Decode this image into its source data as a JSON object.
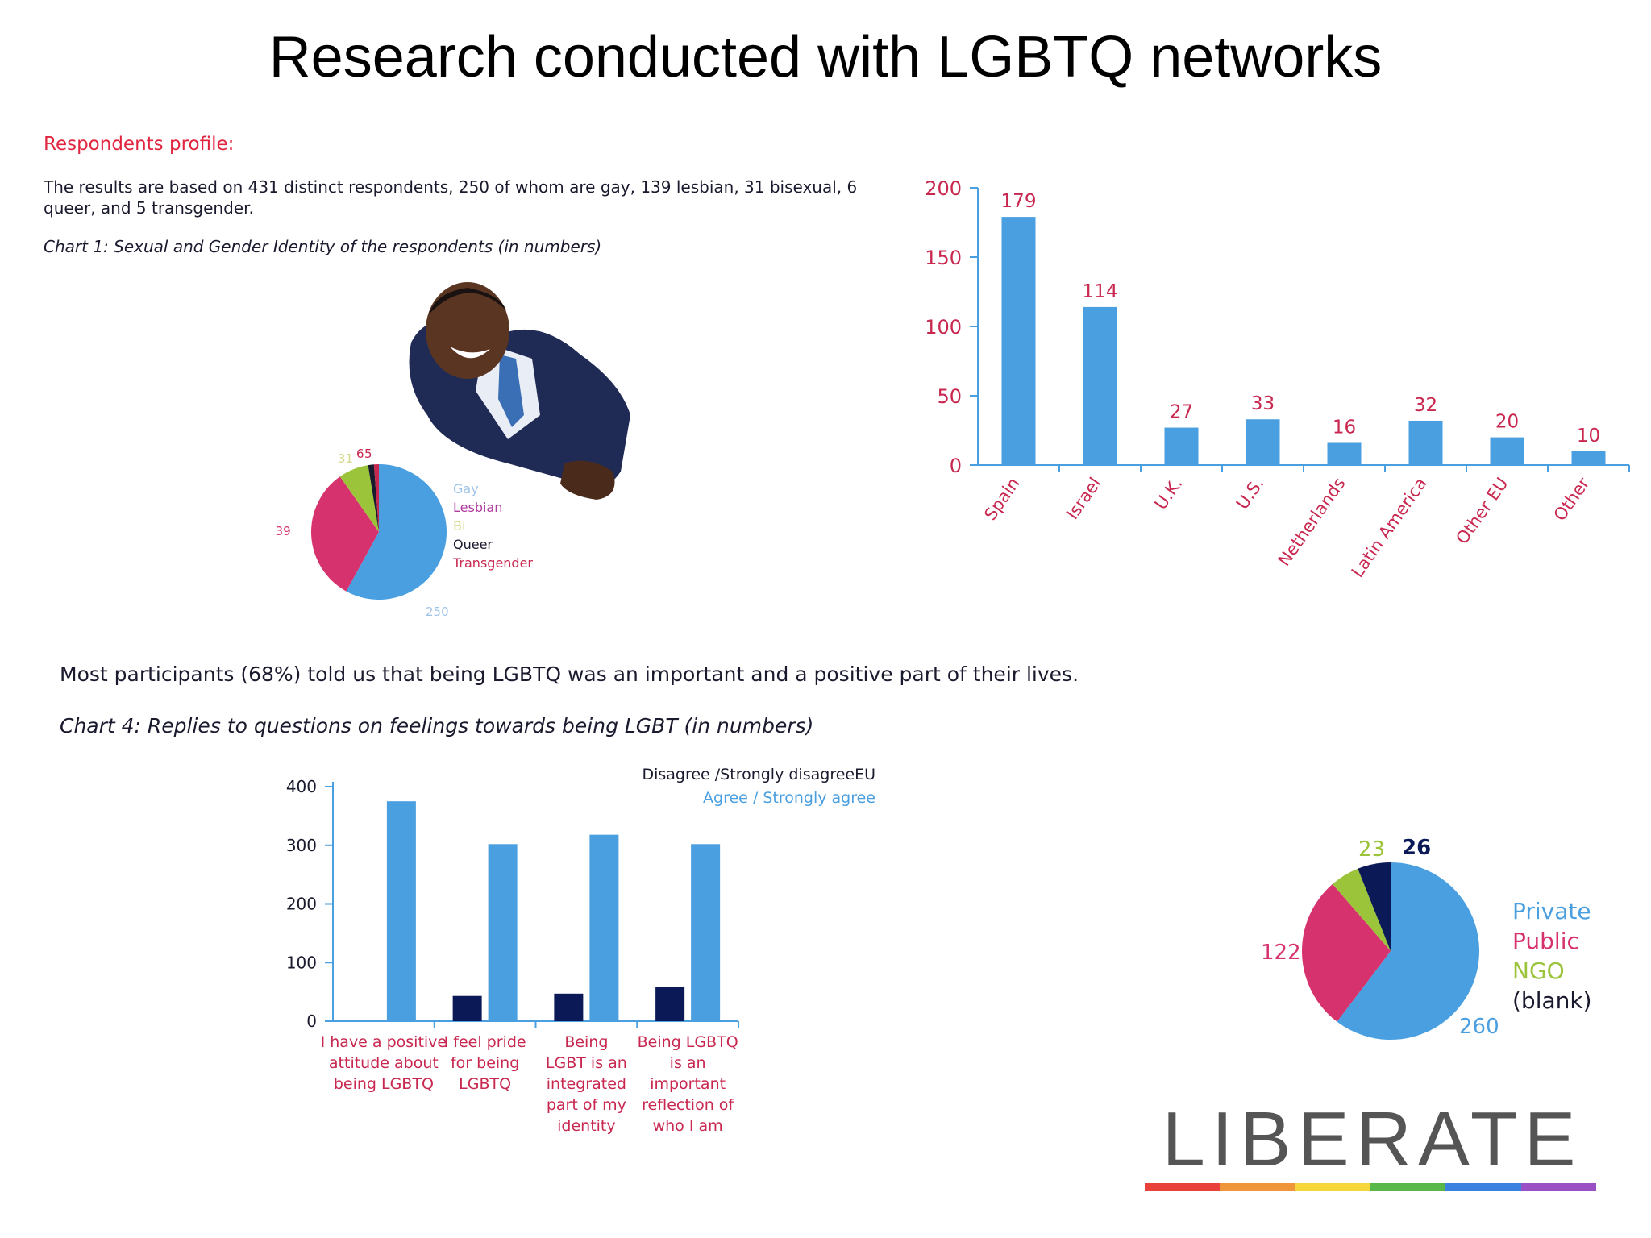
{
  "title": "Research conducted with LGBTQ networks",
  "profile": {
    "heading": "Respondents profile:",
    "text": "The results are based on 431 distinct respondents, 250 of whom are gay, 139 lesbian, 31 bisexual, 6 queer, and 5 transgender.",
    "chart_caption": "Chart 1: Sexual and Gender Identity of the respondents (in numbers)"
  },
  "participants_text": "Most participants (68%) told us that being LGBTQ was an important and a positive part of their lives.",
  "chart4_caption": "Chart 4: Replies to questions on feelings towards being LGBT (in numbers)",
  "colors": {
    "blue": "#4a9fe0",
    "pink": "#d6326e",
    "green": "#9cc43b",
    "navy": "#0b1a57",
    "label_red": "#c8274f",
    "axis_blue": "#4a9fe0"
  },
  "chart_data": [
    {
      "id": "identity-pie",
      "type": "pie",
      "slices": [
        {
          "name": "Gay",
          "value": 250,
          "label": "250",
          "color": "#4a9fe0"
        },
        {
          "name": "Lesbian",
          "value": 139,
          "label": "139",
          "color": "#d6326e"
        },
        {
          "name": "Bi",
          "value": 31,
          "label": "31",
          "color": "#9cc43b"
        },
        {
          "name": "Queer",
          "value": 6,
          "label": "6",
          "color": "#1a1a2e"
        },
        {
          "name": "Transgender",
          "value": 5,
          "label": "5",
          "color": "#c8274f"
        }
      ],
      "legend": [
        "Gay",
        "Lesbian",
        "Bi",
        "Queer",
        "Transgender"
      ],
      "legend_colors": [
        "#9fc4e8",
        "#b03a9e",
        "#d6d98a",
        "#1a1a2e",
        "#c8274f"
      ]
    },
    {
      "id": "country-bar",
      "type": "bar",
      "categories": [
        "Spain",
        "Israel",
        "U.K.",
        "U.S.",
        "Netherlands",
        "Latin America",
        "Other EU",
        "Other"
      ],
      "values": [
        179,
        114,
        27,
        33,
        16,
        32,
        20,
        10
      ],
      "ylim": [
        0,
        200
      ],
      "yticks": [
        0,
        50,
        100,
        150,
        200
      ]
    },
    {
      "id": "feelings-bar",
      "type": "bar",
      "categories": [
        "I have a positive attitude about being LGBTQ",
        "I feel pride for being LGBTQ",
        "Being LGBT is an integrated part of my identity",
        "Being LGBTQ is an important reflection of who I am"
      ],
      "category_lines": [
        [
          "I have a positive",
          "attitude about",
          "being LGBTQ"
        ],
        [
          "I feel pride",
          "for being",
          "LGBTQ"
        ],
        [
          "Being",
          "LGBT is an",
          "integrated",
          "part of my",
          "identity"
        ],
        [
          "Being LGBTQ",
          "is an",
          "important",
          "reflection of",
          "who I am"
        ]
      ],
      "series": [
        {
          "name": "Disagree /Strongly disagreeEU",
          "values": [
            0,
            43,
            47,
            58
          ],
          "color": "#0b1a57"
        },
        {
          "name": "Agree / Strongly agree",
          "values": [
            375,
            302,
            318,
            302
          ],
          "color": "#4a9fe0"
        }
      ],
      "ylim": [
        0,
        400
      ],
      "yticks": [
        0,
        100,
        200,
        300,
        400
      ],
      "legend_position": "top-right"
    },
    {
      "id": "sector-pie",
      "type": "pie",
      "slices": [
        {
          "name": "Private",
          "value": 260,
          "label": "260",
          "color": "#4a9fe0"
        },
        {
          "name": "Public",
          "value": 122,
          "label": "122",
          "color": "#d6326e"
        },
        {
          "name": "NGO",
          "value": 23,
          "label": "23",
          "color": "#9cc43b"
        },
        {
          "name": "(blank)",
          "value": 26,
          "label": "26",
          "color": "#0b1a57"
        }
      ],
      "legend": [
        "Private",
        "Public",
        "NGO",
        "(blank)"
      ],
      "legend_colors": [
        "#4a9fe0",
        "#d6326e",
        "#9cc43b",
        "#1a1a2e"
      ]
    }
  ],
  "logo": {
    "text": "LIBERATE",
    "stripe_colors": [
      "#e8413c",
      "#f0963a",
      "#f5d63b",
      "#5ab84a",
      "#3b82e0",
      "#9b4fc4"
    ]
  }
}
